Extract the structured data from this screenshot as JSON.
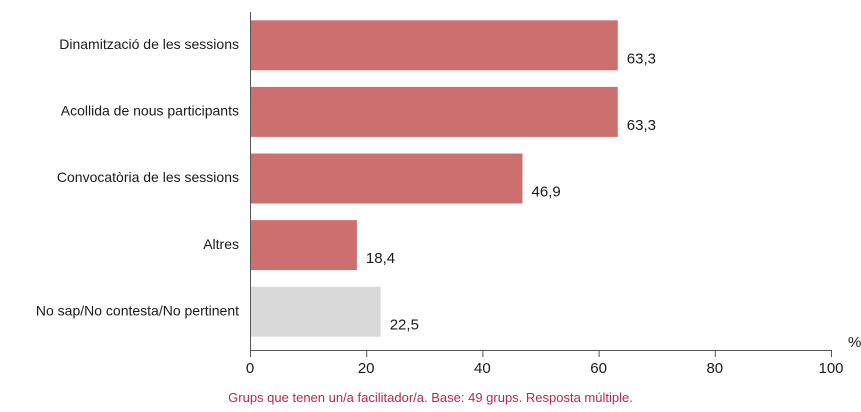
{
  "chart_data": {
    "type": "bar",
    "orientation": "horizontal",
    "categories": [
      "Dinamització de les sessions",
      "Acollida de nous participants",
      "Convocatòria de les sessions",
      "Altres",
      "No sap/No contesta/No pertinent"
    ],
    "values": [
      63.3,
      63.3,
      46.9,
      18.4,
      22.5
    ],
    "value_labels": [
      "63,3",
      "63,3",
      "46,9",
      "18,4",
      "22,5"
    ],
    "bar_colors": [
      "#cc706f",
      "#cc706f",
      "#cc706f",
      "#cc706f",
      "#d9d9d9"
    ],
    "xlim": [
      0,
      100
    ],
    "x_ticks": [
      0,
      20,
      40,
      60,
      80,
      100
    ],
    "x_tick_labels": [
      "0",
      "20",
      "40",
      "60",
      "80",
      "100"
    ],
    "unit": "%",
    "grid": false
  },
  "footnote": "Grups que tenen un/a facilitador/a. Base: 49 grups. Resposta múltiple.",
  "colors": {
    "accent": "#cc706f",
    "neutral": "#d9d9d9",
    "footnote": "#c0244e",
    "axis": "#555555"
  }
}
